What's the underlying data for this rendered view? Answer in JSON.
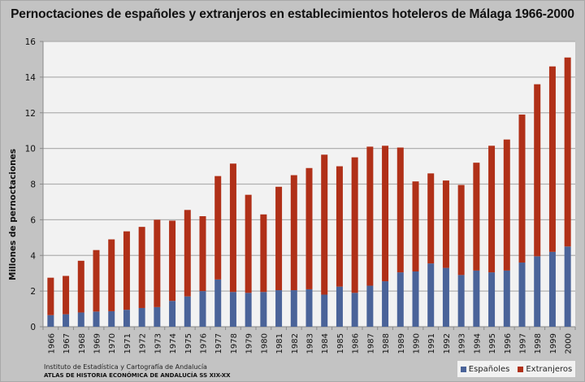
{
  "chart_data": {
    "type": "bar",
    "stacked": true,
    "title": "Pernoctaciones de españoles y extranjeros en establecimientos hoteleros de Málaga 1966-2000",
    "xlabel": "",
    "ylabel": "Millones de pernoctaciones",
    "ylim": [
      0,
      16
    ],
    "yticks": [
      0,
      2,
      4,
      6,
      8,
      10,
      12,
      14,
      16
    ],
    "grid": true,
    "legend_position": "bottom-right",
    "categories": [
      "1966",
      "1967",
      "1968",
      "1969",
      "1970",
      "1971",
      "1972",
      "1973",
      "1974",
      "1975",
      "1976",
      "1977",
      "1978",
      "1979",
      "1980",
      "1981",
      "1982",
      "1983",
      "1984",
      "1985",
      "1986",
      "1987",
      "1988",
      "1989",
      "1990",
      "1991",
      "1992",
      "1993",
      "1994",
      "1995",
      "1996",
      "1997",
      "1998",
      "1999",
      "2000"
    ],
    "series": [
      {
        "name": "Españoles",
        "color": "#4a6399",
        "values": [
          0.65,
          0.7,
          0.8,
          0.85,
          0.87,
          0.95,
          1.05,
          1.1,
          1.45,
          1.7,
          2.0,
          2.65,
          1.95,
          1.9,
          1.95,
          2.05,
          2.05,
          2.1,
          1.8,
          2.25,
          1.9,
          2.3,
          2.55,
          3.05,
          3.1,
          3.55,
          3.3,
          2.9,
          3.15,
          3.05,
          3.15,
          3.6,
          3.95,
          4.2,
          4.5
        ]
      },
      {
        "name": "Extranjeros",
        "color": "#b03018",
        "values": [
          2.1,
          2.15,
          2.9,
          3.45,
          4.03,
          4.4,
          4.55,
          4.9,
          4.5,
          4.85,
          4.2,
          5.8,
          7.2,
          5.5,
          4.35,
          5.8,
          6.45,
          6.8,
          7.85,
          6.75,
          7.6,
          7.8,
          7.6,
          7.0,
          5.05,
          5.05,
          4.9,
          5.05,
          6.05,
          7.1,
          7.35,
          8.3,
          9.65,
          10.4,
          10.6
        ]
      }
    ]
  },
  "source": {
    "line1": "Instituto de Estadística y Cartografía de Andalucía",
    "line2": "ATLAS DE HISTORIA ECONÓMICA DE ANDALUCÍA SS XIX-XX"
  }
}
